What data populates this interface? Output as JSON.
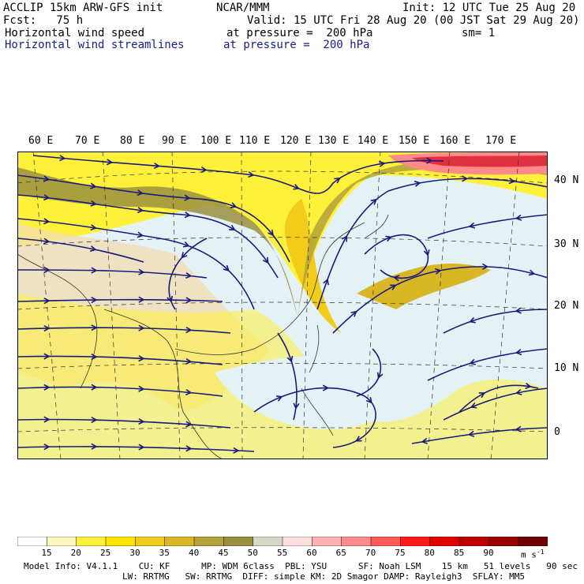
{
  "header": {
    "model": "ACCLIP 15km ARW-GFS init",
    "org": "NCAR/MMM",
    "init": "Init: 12 UTC Tue 25 Aug 20",
    "fcst": "Fcst:   75 h",
    "valid": "Valid: 15 UTC Fri 28 Aug 20 (00 JST Sat 29 Aug 20)",
    "field1": "Horizontal wind speed",
    "field1_level": "at pressure =  200 hPa",
    "smoothing": "sm= 1",
    "field2": "Horizontal wind streamlines",
    "field2_level": "at pressure =  200 hPa"
  },
  "map": {
    "lon_labels": [
      "60 E",
      "70 E",
      "80 E",
      "90 E",
      "100 E",
      "110 E",
      "120 E",
      "130 E",
      "140 E",
      "150 E",
      "160 E",
      "170 E"
    ],
    "lat_labels": [
      "40 N",
      "30 N",
      "20 N",
      "10 N",
      "0"
    ],
    "streamline_color": "#1a1a7a",
    "jet_core_color": "#9a9040",
    "jet_max_color": "#e03040"
  },
  "colorbar": {
    "levels": [
      "15",
      "20",
      "25",
      "30",
      "35",
      "40",
      "45",
      "50",
      "55",
      "60",
      "65",
      "70",
      "75",
      "80",
      "85",
      "90"
    ],
    "unit": "m s",
    "unit_exp": "-1",
    "colors": [
      "#ffffff",
      "#fff7c0",
      "#fff13a",
      "#ffe500",
      "#f2cc1a",
      "#d9b626",
      "#b4a13a",
      "#9a9040",
      "#d8d8c8",
      "#ffe0e0",
      "#ffb2b2",
      "#ff8a8a",
      "#ff5a5a",
      "#ff1a1a",
      "#e00000",
      "#c00000",
      "#9a0000",
      "#700000"
    ]
  },
  "footer": {
    "line1": "Model Info: V4.1.1    CU: KF      MP: WDM 6class  PBL: YSU      SF: Noah LSM    15 km   51 levels   90 sec",
    "line2": "LW: RRTMG   SW: RRTMG  DIFF: simple KM: 2D Smagor DAMP: Rayleigh3  SFLAY: MM5"
  }
}
